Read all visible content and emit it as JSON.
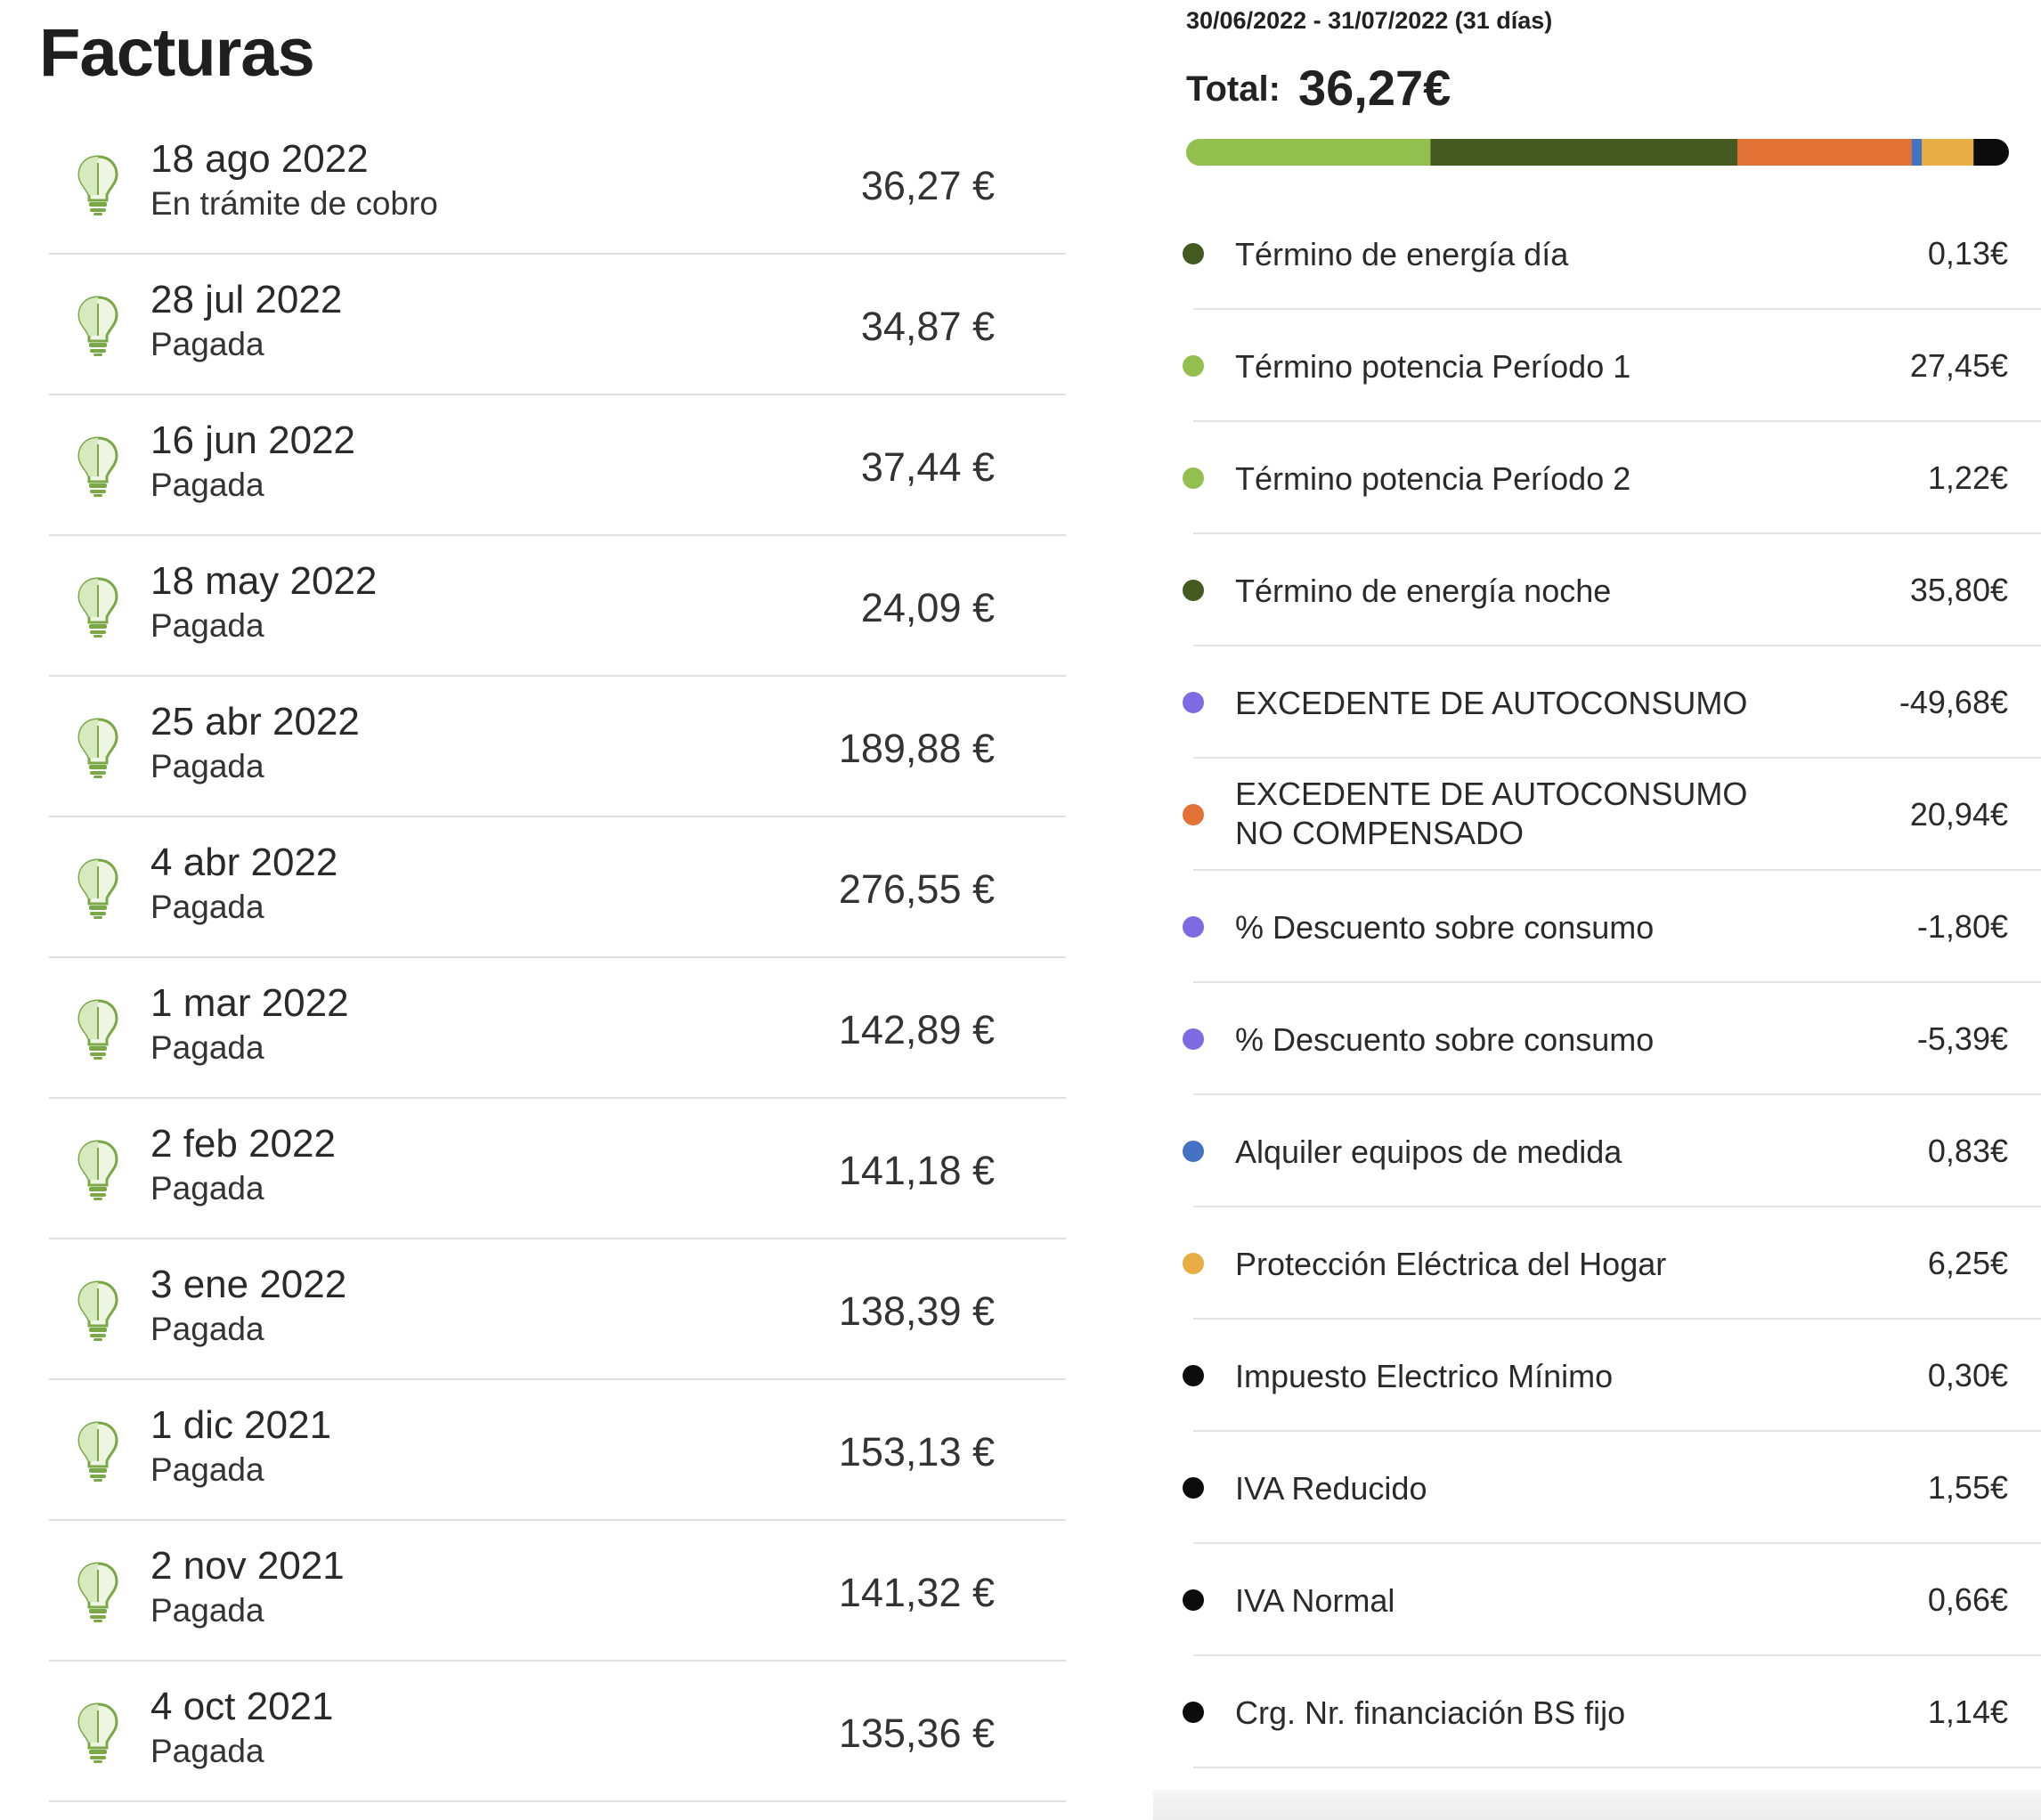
{
  "header": {
    "title": "Facturas"
  },
  "invoices": [
    {
      "date": "18 ago 2022",
      "status": "En trámite de cobro",
      "amount": "36,27 €"
    },
    {
      "date": "28 jul 2022",
      "status": "Pagada",
      "amount": "34,87 €"
    },
    {
      "date": "16 jun 2022",
      "status": "Pagada",
      "amount": "37,44 €"
    },
    {
      "date": "18 may 2022",
      "status": "Pagada",
      "amount": "24,09 €"
    },
    {
      "date": "25 abr 2022",
      "status": "Pagada",
      "amount": "189,88 €"
    },
    {
      "date": "4 abr 2022",
      "status": "Pagada",
      "amount": "276,55 €"
    },
    {
      "date": "1 mar 2022",
      "status": "Pagada",
      "amount": "142,89 €"
    },
    {
      "date": "2 feb 2022",
      "status": "Pagada",
      "amount": "141,18 €"
    },
    {
      "date": "3 ene 2022",
      "status": "Pagada",
      "amount": "138,39 €"
    },
    {
      "date": "1 dic 2021",
      "status": "Pagada",
      "amount": "153,13 €"
    },
    {
      "date": "2 nov 2021",
      "status": "Pagada",
      "amount": "141,32 €"
    },
    {
      "date": "4 oct 2021",
      "status": "Pagada",
      "amount": "135,36 €"
    }
  ],
  "icons": {
    "invoice": "lightbulb-icon"
  },
  "detail": {
    "period": "30/06/2022 - 31/07/2022 (31 días)",
    "total_label": "Total:",
    "total_value": "36,27€",
    "bar_segments": [
      {
        "color": "#93bf4f",
        "fraction": 0.297
      },
      {
        "color": "#445a21",
        "fraction": 0.373
      },
      {
        "color": "#e27236",
        "fraction": 0.212
      },
      {
        "color": "#4472c4",
        "fraction": 0.012
      },
      {
        "color": "#e8ad45",
        "fraction": 0.063
      },
      {
        "color": "#0c0c0c",
        "fraction": 0.043
      }
    ],
    "items": [
      {
        "label": "Término de energía día",
        "value": "0,13€",
        "color": "#445a21"
      },
      {
        "label": "Término potencia Período 1",
        "value": "27,45€",
        "color": "#93bf4f"
      },
      {
        "label": "Término potencia Período 2",
        "value": "1,22€",
        "color": "#93bf4f"
      },
      {
        "label": "Término de energía noche",
        "value": "35,80€",
        "color": "#445a21"
      },
      {
        "label": "EXCEDENTE DE AUTOCONSUMO",
        "value": "-49,68€",
        "color": "#7e6be3"
      },
      {
        "label": "EXCEDENTE DE AUTOCONSUMO NO COMPENSADO",
        "value": "20,94€",
        "color": "#e27236"
      },
      {
        "label": "% Descuento sobre consumo",
        "value": "-1,80€",
        "color": "#7e6be3"
      },
      {
        "label": "% Descuento sobre consumo",
        "value": "-5,39€",
        "color": "#7e6be3"
      },
      {
        "label": "Alquiler equipos de medida",
        "value": "0,83€",
        "color": "#4472c4"
      },
      {
        "label": "Protección Eléctrica del Hogar",
        "value": "6,25€",
        "color": "#e8ad45"
      },
      {
        "label": "Impuesto Electrico Mínimo",
        "value": "0,30€",
        "color": "#0c0c0c"
      },
      {
        "label": "IVA Reducido",
        "value": "1,55€",
        "color": "#0c0c0c"
      },
      {
        "label": "IVA Normal",
        "value": "0,66€",
        "color": "#0c0c0c"
      },
      {
        "label": "Crg. Nr. financiación BS fijo",
        "value": "1,14€",
        "color": "#0c0c0c"
      }
    ]
  }
}
